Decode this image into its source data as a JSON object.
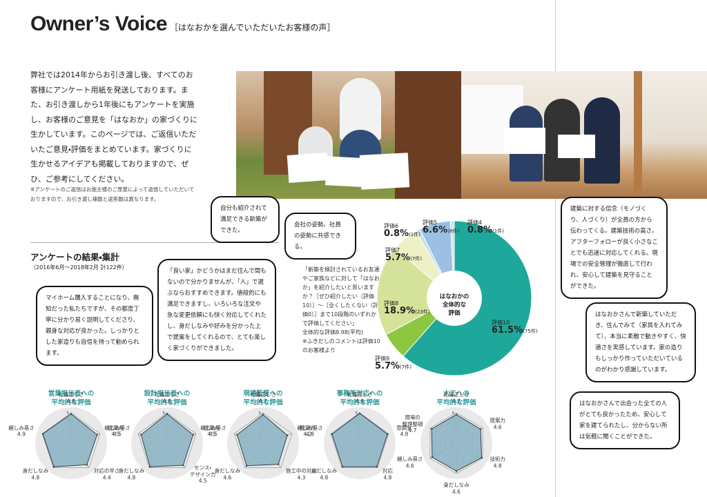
{
  "header": {
    "title": "Owner’s Voice",
    "subtitle": "［はなおかを選んでいただいたお客様の声］"
  },
  "intro": "弊社では2014年からお引き渡し後、すべてのお客様にアンケート用紙を発送しております。また、お引き渡しから1年後にもアンケートを実施し、お客様のご意見を「はなおか」の家づくりに生かしています。このページでは、ご返信いただいたご意見・評価をまとめています。家づくりに生かせるアイデアも掲載しておりますので、ぜひ、ご参考にしてください。",
  "note": "※アンケートのご返信はお施主様のご厚意によって返信していただいておりますので、お引き渡し棟数と返答数は異なります。",
  "survey": {
    "title": "アンケートの結果・集計",
    "period": "（2016年6月～2018年2月 計122件）",
    "question": "「新築を検討されているお友達やご家族などに対して「はなおか」を紹介したいと思いますか？［ぜひ紹介したい（評価10）］～［全くしたくない（評価0）］まで10段階のいずれかで評価してください」",
    "average": "全体的な評価8.98(平均)",
    "footnote": "※ふきだしのコメントは評価10のお客様より"
  },
  "comments": [
    "自分も紹介されて満足できる新築ができた。",
    "会社の姿勢、社員の姿勢に共感できる。",
    "「良い家」かどうかはまだ住んで間もないので分かりませんが、「人」で選ぶならおすすめできます。値段的にも満足できますし、いろいろな注文や急な変更依頼にも快く対応してくれたし、身だしなみや好みを分かった上で提案をしてくれるので、とても楽しく家づくりができました。",
    "マイホーム購入することになり、無知だった私たちですが、その都度丁寧に分かり易く説明してくださり、親身な対応が良かった。しっかりとした家造りも自信を持って勧められます。",
    "建築に対する信念（モノづくり、人づくり）が全員の方から伝わってくる。建築技術の高さ。アフターフォローが良く小さなことでも迅速に対応してくれる。現場での安全管理が徹底して行われ、安心して建築を見守ることができた。",
    "はなおかさんで新築していただき、住んでみて（家具を入れてみて）、本当に素敵で動きやすく、快適さを実感しています。家の造りもしっかり作っていただいているのがわかり感謝しています。",
    "はなおかさんで出会った全ての人がとても良かったため、安心して家を建てられたし、分からない所は気軽に聞くことができた。"
  ],
  "chart_data": [
    {
      "type": "pie",
      "center_label": "はなおかの\n全体的な\n評価",
      "categories": [
        "評価10",
        "評価9",
        "評価8",
        "評価7",
        "評価6",
        "評価5",
        "評価4"
      ],
      "values": [
        61.5,
        5.7,
        18.9,
        5.7,
        0.8,
        6.6,
        0.8
      ],
      "value_labels": [
        "61.5%",
        "5.7%",
        "18.9%",
        "5.7%",
        "0.8%",
        "6.6%",
        "0.8%"
      ],
      "count_labels": [
        "(75件)",
        "(7件)",
        "(23件)",
        "(7件)",
        "(1件)",
        "(8件)",
        "(1件)"
      ],
      "colors": [
        "#1ea89b",
        "#8dc63f",
        "#d5e39a",
        "#eef0c6",
        "#c4dde9",
        "#9cc0e4",
        "#d2e2f1"
      ]
    },
    {
      "type": "radar",
      "title": "営業担当者への\n平均的な評価",
      "categories": [
        "礼儀正しさ",
        "提案力",
        "対応の早さ",
        "身だしなみ",
        "親しみ易さ"
      ],
      "values": [
        4.8,
        4.5,
        4.4,
        4.8,
        4.9
      ],
      "rlim": [
        0,
        5
      ],
      "rticks": [
        1,
        2,
        3,
        4,
        5
      ],
      "color": "#8fb6c6"
    },
    {
      "type": "radar",
      "title": "設計担当者への\n平均的な評価",
      "categories": [
        "礼儀正しさ",
        "提案力",
        "センス・\nデザイン力",
        "身だしなみ",
        "親しみ易さ"
      ],
      "values": [
        4.8,
        4.5,
        4.5,
        4.8,
        4.5
      ],
      "rlim": [
        0,
        5
      ],
      "rticks": [
        1,
        2,
        3,
        4,
        5
      ],
      "color": "#8fb6c6"
    },
    {
      "type": "radar",
      "title": "現場監督への\n平均的な評価",
      "categories": [
        "礼儀正しさ",
        "提案力",
        "施工中の対応",
        "身だしなみ",
        "親しみ易さ"
      ],
      "values": [
        4.7,
        4.2,
        4.3,
        4.6,
        4.5
      ],
      "rlim": [
        0,
        5
      ],
      "rticks": [
        1,
        2,
        3,
        4,
        5
      ],
      "color": "#8fb6c6"
    },
    {
      "type": "radar",
      "title": "事務所対応への\n平均的な評価",
      "categories": [
        "礼儀正しさ",
        "雰囲気",
        "対応",
        "身だしなみ",
        "親しみ易さ"
      ],
      "values": [
        4.9,
        4.8,
        4.8,
        4.8,
        4.8
      ],
      "rlim": [
        0,
        5
      ],
      "rticks": [
        1,
        2,
        3,
        4,
        5
      ],
      "color": "#8fb6c6"
    },
    {
      "type": "radar",
      "title": "大工への\n平均的な評価",
      "categories": [
        "礼儀正しさ",
        "提案力",
        "技術力",
        "身だしなみ",
        "親しみ易さ",
        "現場の\n整理整頓"
      ],
      "values": [
        4.7,
        4.6,
        4.8,
        4.6,
        4.6,
        4.7
      ],
      "rlim": [
        0,
        5
      ],
      "rticks": [
        1,
        2,
        3,
        4,
        5
      ],
      "color": "#8fb6c6"
    }
  ]
}
